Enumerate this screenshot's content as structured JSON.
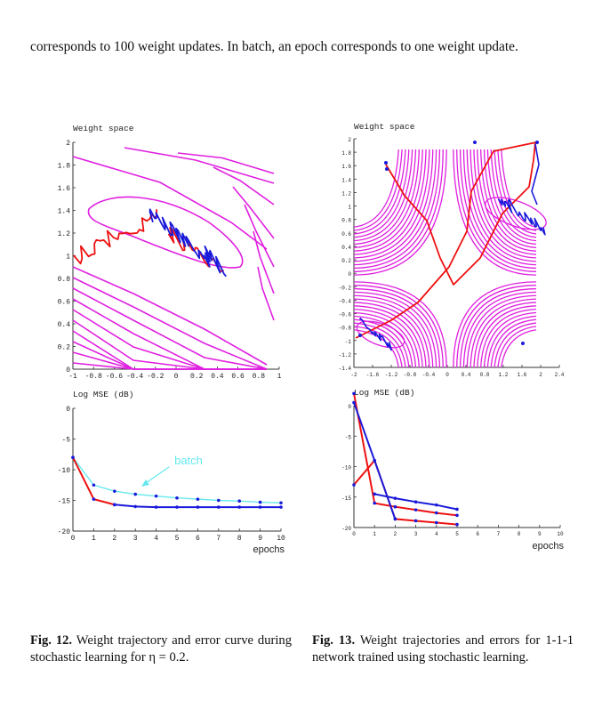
{
  "text": {
    "intro": "corresponds to 100 weight updates. In batch, an epoch corresponds to one weight update.",
    "fig12_label": "Fig. 12.",
    "fig12_caption": "Weight trajectory and error curve during stochastic learning for η = 0.2.",
    "fig13_label": "Fig. 13.",
    "fig13_caption": "Weight trajectories and errors for 1-1-1 network trained using stochastic learning."
  },
  "colors": {
    "contour": "#e020e0",
    "red": "#ee1111",
    "blue": "#1a1adb",
    "batch": "#66e8ee"
  },
  "chart_data": [
    {
      "type": "line",
      "title": "Weight space",
      "xlim": [
        -1,
        1
      ],
      "ylim": [
        0,
        2
      ],
      "xticks": [
        "-1",
        "-0.8",
        "-0.6",
        "-0.4",
        "-0.2",
        "0",
        "0.2",
        "0.4",
        "0.6",
        "0.8",
        "1"
      ],
      "yticks": [
        "0",
        "0.2",
        "0.4",
        "0.6",
        "0.8",
        "1",
        "1.2",
        "1.4",
        "1.6",
        "1.8",
        "2"
      ],
      "description_series": [
        {
          "name": "",
          "color": "red",
          "x": [
            -1,
            -0.94,
            -0.85,
            -0.75,
            -0.6,
            -0.45,
            -0.3,
            -0.15,
            -0.05,
            0.05
          ],
          "y": [
            1.0,
            1.25,
            1.38,
            1.45,
            1.43,
            1.35,
            1.28,
            1.18,
            1.08,
            1.0
          ]
        },
        {
          "name": "",
          "color": "blue",
          "x": [
            -0.35,
            -0.25,
            -0.12,
            0.0,
            0.1,
            0.22
          ],
          "y": [
            1.38,
            1.28,
            1.22,
            1.12,
            1.05,
            0.95
          ]
        }
      ]
    },
    {
      "type": "line",
      "title": "Log MSE (dB)",
      "xlabel": "epochs",
      "xlim": [
        0,
        10
      ],
      "ylim": [
        -20,
        0
      ],
      "xticks": [
        "0",
        "1",
        "2",
        "3",
        "4",
        "5",
        "6",
        "7",
        "8",
        "9",
        "10"
      ],
      "yticks": [
        "0",
        "-5",
        "-10",
        "-15",
        "-20"
      ],
      "annotations": [
        "batch"
      ],
      "series": [
        {
          "name": "batch",
          "color": "batch",
          "x": [
            0,
            1,
            2,
            3,
            4,
            5,
            6,
            7,
            8,
            9,
            10
          ],
          "y": [
            -8,
            -12.5,
            -13.5,
            -14,
            -14.3,
            -14.6,
            -14.8,
            -15,
            -15.1,
            -15.3,
            -15.4
          ]
        },
        {
          "color": "red",
          "x": [
            0,
            1,
            2
          ],
          "y": [
            -8,
            -14.8,
            -15.7
          ]
        },
        {
          "color": "blue",
          "x": [
            2,
            3,
            4,
            5,
            6,
            7,
            8,
            9,
            10
          ],
          "y": [
            -15.7,
            -16,
            -16.1,
            -16.1,
            -16.1,
            -16.1,
            -16.1,
            -16.1,
            -16.1
          ]
        }
      ]
    },
    {
      "type": "line",
      "title": "Weight space",
      "xlim": [
        -2,
        2.4
      ],
      "ylim": [
        -1.4,
        2
      ],
      "xticks": [
        "-2",
        "-1.6",
        "-1.2",
        "-0.8",
        "-0.4",
        "0",
        "0.4",
        "0.8",
        "1.2",
        "1.6",
        "2",
        "2.4"
      ],
      "yticks": [
        "2",
        "1.8",
        "1.6",
        "1.4",
        "1.2",
        "1",
        "0.8",
        "0.6",
        "0.4",
        "0.2",
        "0",
        "-0.2",
        "-0.4",
        "-0.6",
        "-0.8",
        "-1",
        "-1.2",
        "-1.4"
      ]
    },
    {
      "type": "line",
      "title": "Log MSE (dB)",
      "xlabel": "epochs",
      "xlim": [
        0,
        10
      ],
      "ylim": [
        -20,
        0
      ],
      "xticks": [
        "0",
        "1",
        "2",
        "3",
        "4",
        "5",
        "6",
        "7",
        "8",
        "9",
        "10"
      ],
      "yticks": [
        "0",
        "-5",
        "-10",
        "-15",
        "-20"
      ],
      "series": [
        {
          "color": "red",
          "x": [
            0,
            1,
            2,
            3,
            4,
            5
          ],
          "y": [
            2,
            -16,
            -16.6,
            -17.1,
            -17.6,
            -18
          ]
        },
        {
          "color": "red",
          "x": [
            0,
            1,
            2,
            3,
            4,
            5
          ],
          "y": [
            -13,
            -9,
            -18.6,
            -18.9,
            -19.2,
            -19.5
          ]
        },
        {
          "color": "blue",
          "x": [
            1,
            2,
            3,
            4,
            5
          ],
          "y": [
            -14.5,
            -15.2,
            -15.8,
            -16.3,
            -17
          ]
        },
        {
          "color": "blue",
          "x": [
            0,
            1,
            2
          ],
          "y": [
            0.5,
            -9,
            -18.6
          ]
        }
      ]
    }
  ]
}
